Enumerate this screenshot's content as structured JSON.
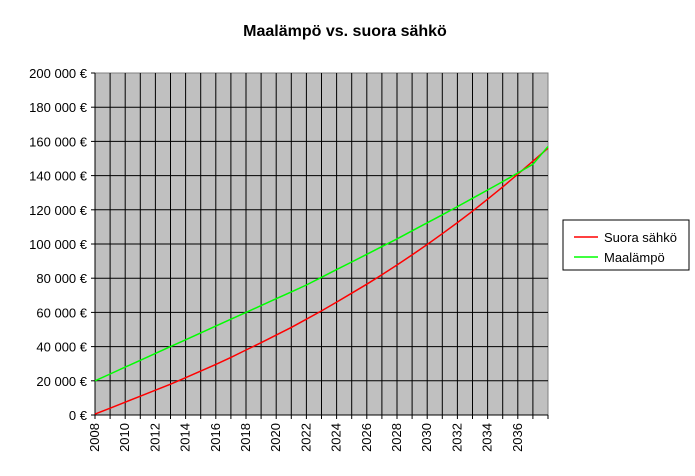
{
  "chart_data": {
    "type": "line",
    "title": "Maalämpö vs. suora sähkö",
    "xlabel": "",
    "ylabel": "",
    "xlim": [
      2008,
      2038
    ],
    "ylim": [
      0,
      200000
    ],
    "grid": true,
    "plot_background": "#c0c0c0",
    "legend_position": "right",
    "x_tick_labels": [
      "2008",
      "2010",
      "2012",
      "2014",
      "2016",
      "2018",
      "2020",
      "2022",
      "2024",
      "2026",
      "2028",
      "2030",
      "2032",
      "2034",
      "2036"
    ],
    "y_tick_labels": [
      "0 €",
      "20 000 €",
      "40 000 €",
      "60 000 €",
      "80 000 €",
      "100 000 €",
      "120 000 €",
      "140 000 €",
      "160 000 €",
      "180 000 €",
      "200 000 €"
    ],
    "x": [
      2008,
      2009,
      2010,
      2011,
      2012,
      2013,
      2014,
      2015,
      2016,
      2017,
      2018,
      2019,
      2020,
      2021,
      2022,
      2023,
      2024,
      2025,
      2026,
      2027,
      2028,
      2029,
      2030,
      2031,
      2032,
      2033,
      2034,
      2035,
      2036,
      2037,
      2038
    ],
    "series": [
      {
        "name": "Suora sähkö",
        "color": "#ff0000",
        "values": [
          500,
          4000,
          7500,
          11000,
          14500,
          18000,
          21800,
          25700,
          29600,
          33700,
          38000,
          42300,
          46700,
          51200,
          56000,
          60900,
          66000,
          71200,
          76500,
          82000,
          87700,
          93600,
          99700,
          106000,
          112500,
          119200,
          126200,
          133400,
          140800,
          148400,
          156000
        ]
      },
      {
        "name": "Maalämpö",
        "color": "#00ff00",
        "values": [
          20000,
          24000,
          28000,
          32000,
          36000,
          40000,
          44000,
          48000,
          52000,
          56000,
          60000,
          64000,
          68000,
          72000,
          76000,
          80500,
          85000,
          89500,
          94000,
          98500,
          103000,
          107700,
          112400,
          117100,
          121900,
          126700,
          131600,
          136500,
          141500,
          146600,
          157000
        ]
      }
    ]
  }
}
